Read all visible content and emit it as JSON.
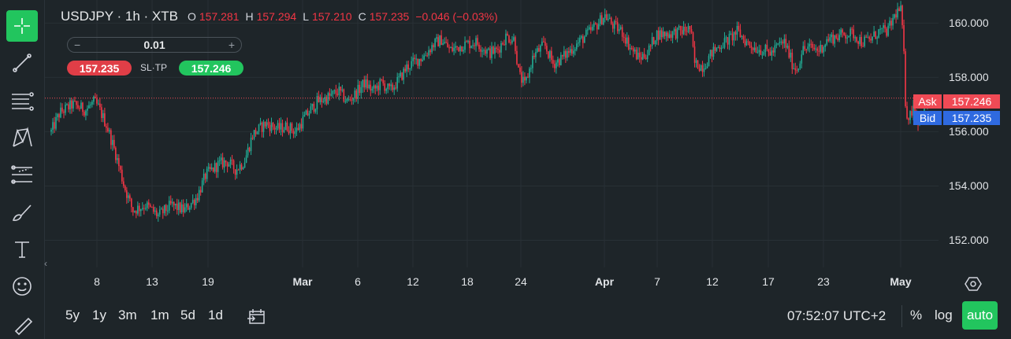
{
  "header": {
    "symbol": "USDJPY · 1h · XTB",
    "ohlc": [
      {
        "label": "O",
        "value": "157.281"
      },
      {
        "label": "H",
        "value": "157.294"
      },
      {
        "label": "L",
        "value": "157.210"
      },
      {
        "label": "C",
        "value": "157.235"
      }
    ],
    "change": "−0.046 (−0.03%)"
  },
  "trade": {
    "quantity": "0.01",
    "minus": "−",
    "plus": "+",
    "sell_price": "157.235",
    "sltp_label": "SL·TP",
    "buy_price": "157.246"
  },
  "price_tags": {
    "ask_label": "Ask",
    "ask_value": "157.246",
    "bid_label": "Bid",
    "bid_value": "157.235"
  },
  "colors": {
    "up": "#22ab94",
    "down": "#f23645",
    "ask": "#f04a55",
    "bid": "#2f6ae0",
    "accent": "#22c55e"
  },
  "bottom": {
    "ranges": [
      "5y",
      "1y",
      "3m",
      "1m",
      "5d",
      "1d"
    ],
    "time": "07:52:07 UTC+2",
    "percent": "%",
    "log": "log",
    "auto": "auto"
  },
  "toolbar_icons": [
    "crosshair-icon",
    "trend-line-icon",
    "fib-lines-icon",
    "pattern-icon",
    "prediction-icon",
    "brush-icon",
    "text-icon",
    "emoji-icon",
    "ruler-icon"
  ],
  "chart_data": {
    "type": "candlestick",
    "title": "",
    "xlabel": "",
    "ylabel": "",
    "ylim": [
      151.0,
      160.85
    ],
    "y_ticks": [
      "160.000",
      "158.000",
      "156.000",
      "154.000",
      "152.000"
    ],
    "x_ticks": [
      {
        "label": "8",
        "major": false
      },
      {
        "label": "13",
        "major": false
      },
      {
        "label": "19",
        "major": false
      },
      {
        "label": "Mar",
        "major": true
      },
      {
        "label": "6",
        "major": false
      },
      {
        "label": "12",
        "major": false
      },
      {
        "label": "18",
        "major": false
      },
      {
        "label": "24",
        "major": false
      },
      {
        "label": "Apr",
        "major": true
      },
      {
        "label": "7",
        "major": false
      },
      {
        "label": "12",
        "major": false
      },
      {
        "label": "17",
        "major": false
      },
      {
        "label": "23",
        "major": false
      },
      {
        "label": "May",
        "major": true
      }
    ],
    "current_price": 157.235,
    "price_path": [
      {
        "x": 0.0,
        "y": 156.0
      },
      {
        "x": 0.01,
        "y": 156.7
      },
      {
        "x": 0.025,
        "y": 157.0
      },
      {
        "x": 0.04,
        "y": 156.8
      },
      {
        "x": 0.05,
        "y": 157.1
      },
      {
        "x": 0.055,
        "y": 156.9
      },
      {
        "x": 0.065,
        "y": 156.2
      },
      {
        "x": 0.075,
        "y": 155.2
      },
      {
        "x": 0.085,
        "y": 154.0
      },
      {
        "x": 0.095,
        "y": 153.1
      },
      {
        "x": 0.11,
        "y": 153.3
      },
      {
        "x": 0.125,
        "y": 152.9
      },
      {
        "x": 0.14,
        "y": 153.3
      },
      {
        "x": 0.155,
        "y": 153.1
      },
      {
        "x": 0.17,
        "y": 153.6
      },
      {
        "x": 0.18,
        "y": 154.4
      },
      {
        "x": 0.195,
        "y": 154.8
      },
      {
        "x": 0.205,
        "y": 154.9
      },
      {
        "x": 0.215,
        "y": 154.6
      },
      {
        "x": 0.225,
        "y": 154.9
      },
      {
        "x": 0.235,
        "y": 155.9
      },
      {
        "x": 0.25,
        "y": 156.3
      },
      {
        "x": 0.265,
        "y": 156.1
      },
      {
        "x": 0.275,
        "y": 156.2
      },
      {
        "x": 0.285,
        "y": 156.0
      },
      {
        "x": 0.295,
        "y": 156.5
      },
      {
        "x": 0.31,
        "y": 157.1
      },
      {
        "x": 0.325,
        "y": 157.3
      },
      {
        "x": 0.335,
        "y": 157.5
      },
      {
        "x": 0.345,
        "y": 157.1
      },
      {
        "x": 0.355,
        "y": 157.4
      },
      {
        "x": 0.365,
        "y": 157.8
      },
      {
        "x": 0.375,
        "y": 157.5
      },
      {
        "x": 0.385,
        "y": 157.8
      },
      {
        "x": 0.395,
        "y": 157.5
      },
      {
        "x": 0.405,
        "y": 157.9
      },
      {
        "x": 0.415,
        "y": 158.4
      },
      {
        "x": 0.425,
        "y": 158.6
      },
      {
        "x": 0.435,
        "y": 158.8
      },
      {
        "x": 0.445,
        "y": 159.2
      },
      {
        "x": 0.455,
        "y": 159.4
      },
      {
        "x": 0.465,
        "y": 159.0
      },
      {
        "x": 0.48,
        "y": 159.2
      },
      {
        "x": 0.495,
        "y": 159.3
      },
      {
        "x": 0.51,
        "y": 158.9
      },
      {
        "x": 0.52,
        "y": 159.0
      },
      {
        "x": 0.53,
        "y": 159.5
      },
      {
        "x": 0.54,
        "y": 159.4
      },
      {
        "x": 0.545,
        "y": 158.1
      },
      {
        "x": 0.552,
        "y": 157.7
      },
      {
        "x": 0.562,
        "y": 158.8
      },
      {
        "x": 0.575,
        "y": 159.2
      },
      {
        "x": 0.585,
        "y": 158.5
      },
      {
        "x": 0.595,
        "y": 158.7
      },
      {
        "x": 0.605,
        "y": 159.0
      },
      {
        "x": 0.615,
        "y": 159.3
      },
      {
        "x": 0.625,
        "y": 159.6
      },
      {
        "x": 0.635,
        "y": 159.9
      },
      {
        "x": 0.645,
        "y": 160.3
      },
      {
        "x": 0.655,
        "y": 159.9
      },
      {
        "x": 0.665,
        "y": 159.7
      },
      {
        "x": 0.675,
        "y": 159.1
      },
      {
        "x": 0.685,
        "y": 158.7
      },
      {
        "x": 0.695,
        "y": 158.9
      },
      {
        "x": 0.705,
        "y": 159.6
      },
      {
        "x": 0.72,
        "y": 159.6
      },
      {
        "x": 0.735,
        "y": 159.7
      },
      {
        "x": 0.745,
        "y": 159.8
      },
      {
        "x": 0.75,
        "y": 158.5
      },
      {
        "x": 0.76,
        "y": 158.4
      },
      {
        "x": 0.77,
        "y": 158.9
      },
      {
        "x": 0.78,
        "y": 159.2
      },
      {
        "x": 0.79,
        "y": 159.4
      },
      {
        "x": 0.8,
        "y": 159.7
      },
      {
        "x": 0.81,
        "y": 159.3
      },
      {
        "x": 0.82,
        "y": 159.1
      },
      {
        "x": 0.83,
        "y": 159.0
      },
      {
        "x": 0.84,
        "y": 158.9
      },
      {
        "x": 0.848,
        "y": 159.2
      },
      {
        "x": 0.855,
        "y": 159.3
      },
      {
        "x": 0.865,
        "y": 158.4
      },
      {
        "x": 0.87,
        "y": 158.3
      },
      {
        "x": 0.875,
        "y": 159.0
      },
      {
        "x": 0.885,
        "y": 159.1
      },
      {
        "x": 0.895,
        "y": 159.0
      },
      {
        "x": 0.905,
        "y": 159.4
      },
      {
        "x": 0.915,
        "y": 159.5
      },
      {
        "x": 0.925,
        "y": 159.6
      },
      {
        "x": 0.935,
        "y": 159.6
      },
      {
        "x": 0.945,
        "y": 159.3
      },
      {
        "x": 0.955,
        "y": 159.4
      },
      {
        "x": 0.965,
        "y": 159.7
      },
      {
        "x": 0.975,
        "y": 159.7
      },
      {
        "x": 0.985,
        "y": 160.4
      },
      {
        "x": 0.99,
        "y": 160.5
      },
      {
        "x": 0.993,
        "y": 159.5
      },
      {
        "x": 0.996,
        "y": 156.8
      },
      {
        "x": 1.0,
        "y": 156.5
      },
      {
        "x": 1.005,
        "y": 157.0
      },
      {
        "x": 1.01,
        "y": 156.4
      },
      {
        "x": 1.015,
        "y": 156.6
      },
      {
        "x": 1.02,
        "y": 157.0
      },
      {
        "x": 1.025,
        "y": 157.2
      }
    ]
  }
}
